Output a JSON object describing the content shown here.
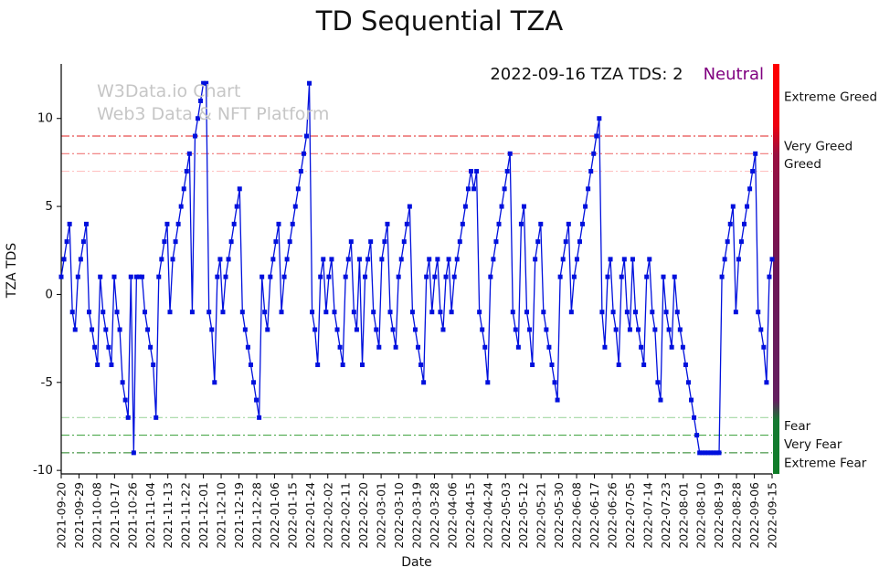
{
  "title": "TD Sequential TZA",
  "watermark": {
    "line1": "W3Data.io Chart",
    "line2": "Web3 Data & NFT Platform"
  },
  "annotation": {
    "tds_text": "2022-09-16 TZA TDS: 2",
    "status": "Neutral",
    "status_color": "#800080"
  },
  "chart_data": {
    "type": "line",
    "title": "TD Sequential TZA",
    "xlabel": "Date",
    "ylabel": "TZA TDS",
    "ylim": [
      -10.2,
      13.1
    ],
    "yticks": [
      -10,
      -5,
      0,
      5,
      10
    ],
    "line_color": "#0010dd",
    "marker": "square",
    "grid": false,
    "x_tick_labels": [
      "2021-09-20",
      "2021-09-29",
      "2021-10-08",
      "2021-10-17",
      "2021-10-26",
      "2021-11-04",
      "2021-11-13",
      "2021-11-22",
      "2021-12-01",
      "2021-12-10",
      "2021-12-19",
      "2021-12-28",
      "2022-01-06",
      "2022-01-15",
      "2022-01-24",
      "2022-02-02",
      "2022-02-11",
      "2022-02-20",
      "2022-03-01",
      "2022-03-10",
      "2022-03-19",
      "2022-03-28",
      "2022-04-06",
      "2022-04-15",
      "2022-04-24",
      "2022-05-03",
      "2022-05-12",
      "2022-05-21",
      "2022-05-30",
      "2022-06-08",
      "2022-06-17",
      "2022-06-26",
      "2022-07-05",
      "2022-07-14",
      "2022-07-23",
      "2022-08-01",
      "2022-08-10",
      "2022-08-19",
      "2022-08-28",
      "2022-09-06",
      "2022-09-15"
    ],
    "values": [
      1,
      2,
      3,
      4,
      -1,
      -2,
      1,
      2,
      3,
      4,
      -1,
      -2,
      -3,
      -4,
      1,
      -1,
      -2,
      -3,
      -4,
      1,
      -1,
      -2,
      -5,
      -6,
      -7,
      1,
      -9,
      1,
      1,
      1,
      -1,
      -2,
      -3,
      -4,
      -7,
      1,
      2,
      3,
      4,
      -1,
      2,
      3,
      4,
      5,
      6,
      7,
      8,
      -1,
      9,
      10,
      11,
      12,
      12,
      -1,
      -2,
      -5,
      1,
      2,
      -1,
      1,
      2,
      3,
      4,
      5,
      6,
      -1,
      -2,
      -3,
      -4,
      -5,
      -6,
      -7,
      1,
      -1,
      -2,
      1,
      2,
      3,
      4,
      -1,
      1,
      2,
      3,
      4,
      5,
      6,
      7,
      8,
      9,
      12,
      -1,
      -2,
      -4,
      1,
      2,
      -1,
      1,
      2,
      -1,
      -2,
      -3,
      -4,
      1,
      2,
      3,
      -1,
      -2,
      2,
      -4,
      1,
      2,
      3,
      -1,
      -2,
      -3,
      2,
      3,
      4,
      -1,
      -2,
      -3,
      1,
      2,
      3,
      4,
      5,
      -1,
      -2,
      -3,
      -4,
      -5,
      1,
      2,
      -1,
      1,
      2,
      -1,
      -2,
      1,
      2,
      -1,
      1,
      2,
      3,
      4,
      5,
      6,
      7,
      6,
      7,
      -1,
      -2,
      -3,
      -5,
      1,
      2,
      3,
      4,
      5,
      6,
      7,
      8,
      -1,
      -2,
      -3,
      4,
      5,
      -1,
      -2,
      -4,
      2,
      3,
      4,
      -1,
      -2,
      -3,
      -4,
      -5,
      -6,
      1,
      2,
      3,
      4,
      -1,
      1,
      2,
      3,
      4,
      5,
      6,
      7,
      8,
      9,
      10,
      -1,
      -3,
      1,
      2,
      -1,
      -2,
      -4,
      1,
      2,
      -1,
      -2,
      2,
      -1,
      -2,
      -3,
      -4,
      1,
      2,
      -1,
      -2,
      -5,
      -6,
      1,
      -1,
      -2,
      -3,
      1,
      -1,
      -2,
      -3,
      -4,
      -5,
      -6,
      -7,
      -8,
      -9,
      -9,
      -9,
      -9,
      -9,
      -9,
      -9,
      -9,
      1,
      2,
      3,
      4,
      5,
      -1,
      2,
      3,
      4,
      5,
      6,
      7,
      8,
      -1,
      -2,
      -3,
      -5,
      1,
      2
    ],
    "threshold_lines": [
      {
        "value": 9,
        "color": "#e02020"
      },
      {
        "value": 8,
        "color": "#f07878"
      },
      {
        "value": 7,
        "color": "#ffc2c2"
      },
      {
        "value": -7,
        "color": "#a2d8a2"
      },
      {
        "value": -8,
        "color": "#4aa84a"
      },
      {
        "value": -9,
        "color": "#1d7f1d"
      }
    ],
    "zone_labels": [
      {
        "text": "Extreme Greed",
        "at": 11.2,
        "color": "#e01818"
      },
      {
        "text": "Very Greed",
        "at": 8.4,
        "color": "#e86060"
      },
      {
        "text": "Greed",
        "at": 7.4,
        "color": "#f2a6a6"
      },
      {
        "text": "Fear",
        "at": -7.5,
        "color": "#96cc96"
      },
      {
        "text": "Very Fear",
        "at": -8.55,
        "color": "#3f9f3f"
      },
      {
        "text": "Extreme Fear",
        "at": -9.6,
        "color": "#0f7c0f"
      }
    ],
    "side_bar_stops": [
      {
        "offset": 0,
        "color": "#ff0000"
      },
      {
        "offset": 0.15,
        "color": "#ee0010"
      },
      {
        "offset": 0.22,
        "color": "#9a1040"
      },
      {
        "offset": 0.5,
        "color": "#6e1656"
      },
      {
        "offset": 0.82,
        "color": "#642060"
      },
      {
        "offset": 0.87,
        "color": "#157a32"
      },
      {
        "offset": 1,
        "color": "#0f7c28"
      }
    ]
  }
}
